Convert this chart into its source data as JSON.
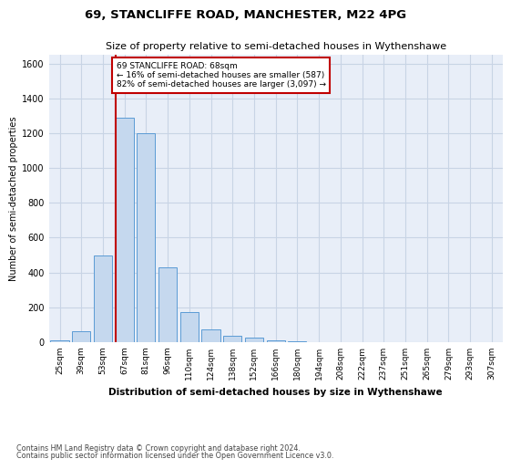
{
  "title1": "69, STANCLIFFE ROAD, MANCHESTER, M22 4PG",
  "title2": "Size of property relative to semi-detached houses in Wythenshawe",
  "xlabel": "Distribution of semi-detached houses by size in Wythenshawe",
  "ylabel": "Number of semi-detached properties",
  "categories": [
    "25sqm",
    "39sqm",
    "53sqm",
    "67sqm",
    "81sqm",
    "96sqm",
    "110sqm",
    "124sqm",
    "138sqm",
    "152sqm",
    "166sqm",
    "180sqm",
    "194sqm",
    "208sqm",
    "222sqm",
    "237sqm",
    "251sqm",
    "265sqm",
    "279sqm",
    "293sqm",
    "307sqm"
  ],
  "values": [
    10,
    65,
    500,
    1290,
    1200,
    430,
    175,
    75,
    35,
    25,
    10,
    5,
    2,
    1,
    0,
    0,
    0,
    0,
    0,
    0,
    0
  ],
  "bar_color": "#c5d8ee",
  "bar_edge_color": "#5b9bd5",
  "highlight_line_color": "#c00000",
  "annotation_text": "69 STANCLIFFE ROAD: 68sqm\n← 16% of semi-detached houses are smaller (587)\n82% of semi-detached houses are larger (3,097) →",
  "annotation_box_color": "#c00000",
  "ylim": [
    0,
    1650
  ],
  "yticks": [
    0,
    200,
    400,
    600,
    800,
    1000,
    1200,
    1400,
    1600
  ],
  "grid_color": "#c8d4e5",
  "bg_color": "#e8eef8",
  "footer1": "Contains HM Land Registry data © Crown copyright and database right 2024.",
  "footer2": "Contains public sector information licensed under the Open Government Licence v3.0."
}
